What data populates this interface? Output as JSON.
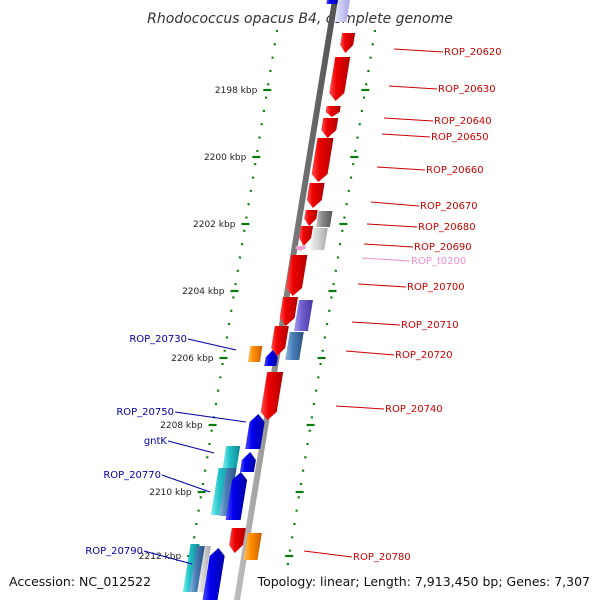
{
  "title": "Rhodococcus opacus B4, complete genome",
  "accession": "Accession: NC_012522",
  "topology": "Topology: linear; Length: 7,913,450 bp; Genes: 7,307",
  "colors": {
    "red": "#ee0000",
    "blue": "#0000ee",
    "orange": "#ff8c00",
    "cyan": "#20c0c8",
    "steelblue": "#4a80b8",
    "purple": "#7060d0",
    "gray": "#888888",
    "pink": "#f0a0d0",
    "tick": "#0a7a0a",
    "label_red": "#cc0000",
    "label_blue": "#0000aa",
    "label_pink": "#ee90cc"
  },
  "ruler": [
    {
      "label": "2198 kbp"
    },
    {
      "label": "2200 kbp"
    },
    {
      "label": "2202 kbp"
    },
    {
      "label": "2204 kbp"
    },
    {
      "label": "2206 kbp"
    },
    {
      "label": "2208 kbp"
    },
    {
      "label": "2210 kbp"
    },
    {
      "label": "2212 kbp"
    }
  ],
  "labels_right": [
    {
      "text": "ROP_20620",
      "color": "label_red"
    },
    {
      "text": "ROP_20630",
      "color": "label_red"
    },
    {
      "text": "ROP_20640",
      "color": "label_red"
    },
    {
      "text": "ROP_20650",
      "color": "label_red"
    },
    {
      "text": "ROP_20660",
      "color": "label_red"
    },
    {
      "text": "ROP_20670",
      "color": "label_red"
    },
    {
      "text": "ROP_20680",
      "color": "label_red"
    },
    {
      "text": "ROP_20690",
      "color": "label_red"
    },
    {
      "text": "ROP_t0200",
      "color": "label_pink"
    },
    {
      "text": "ROP_20700",
      "color": "label_red"
    },
    {
      "text": "ROP_20710",
      "color": "label_red"
    },
    {
      "text": "ROP_20720",
      "color": "label_red"
    },
    {
      "text": "ROP_20740",
      "color": "label_red"
    },
    {
      "text": "ROP_20780",
      "color": "label_red"
    }
  ],
  "labels_left": [
    {
      "text": "ROP_20730",
      "color": "label_blue"
    },
    {
      "text": "ROP_20750",
      "color": "label_blue"
    },
    {
      "text": "gntK",
      "color": "label_blue"
    },
    {
      "text": "ROP_20770",
      "color": "label_blue"
    },
    {
      "text": "ROP_20790",
      "color": "label_blue"
    }
  ]
}
